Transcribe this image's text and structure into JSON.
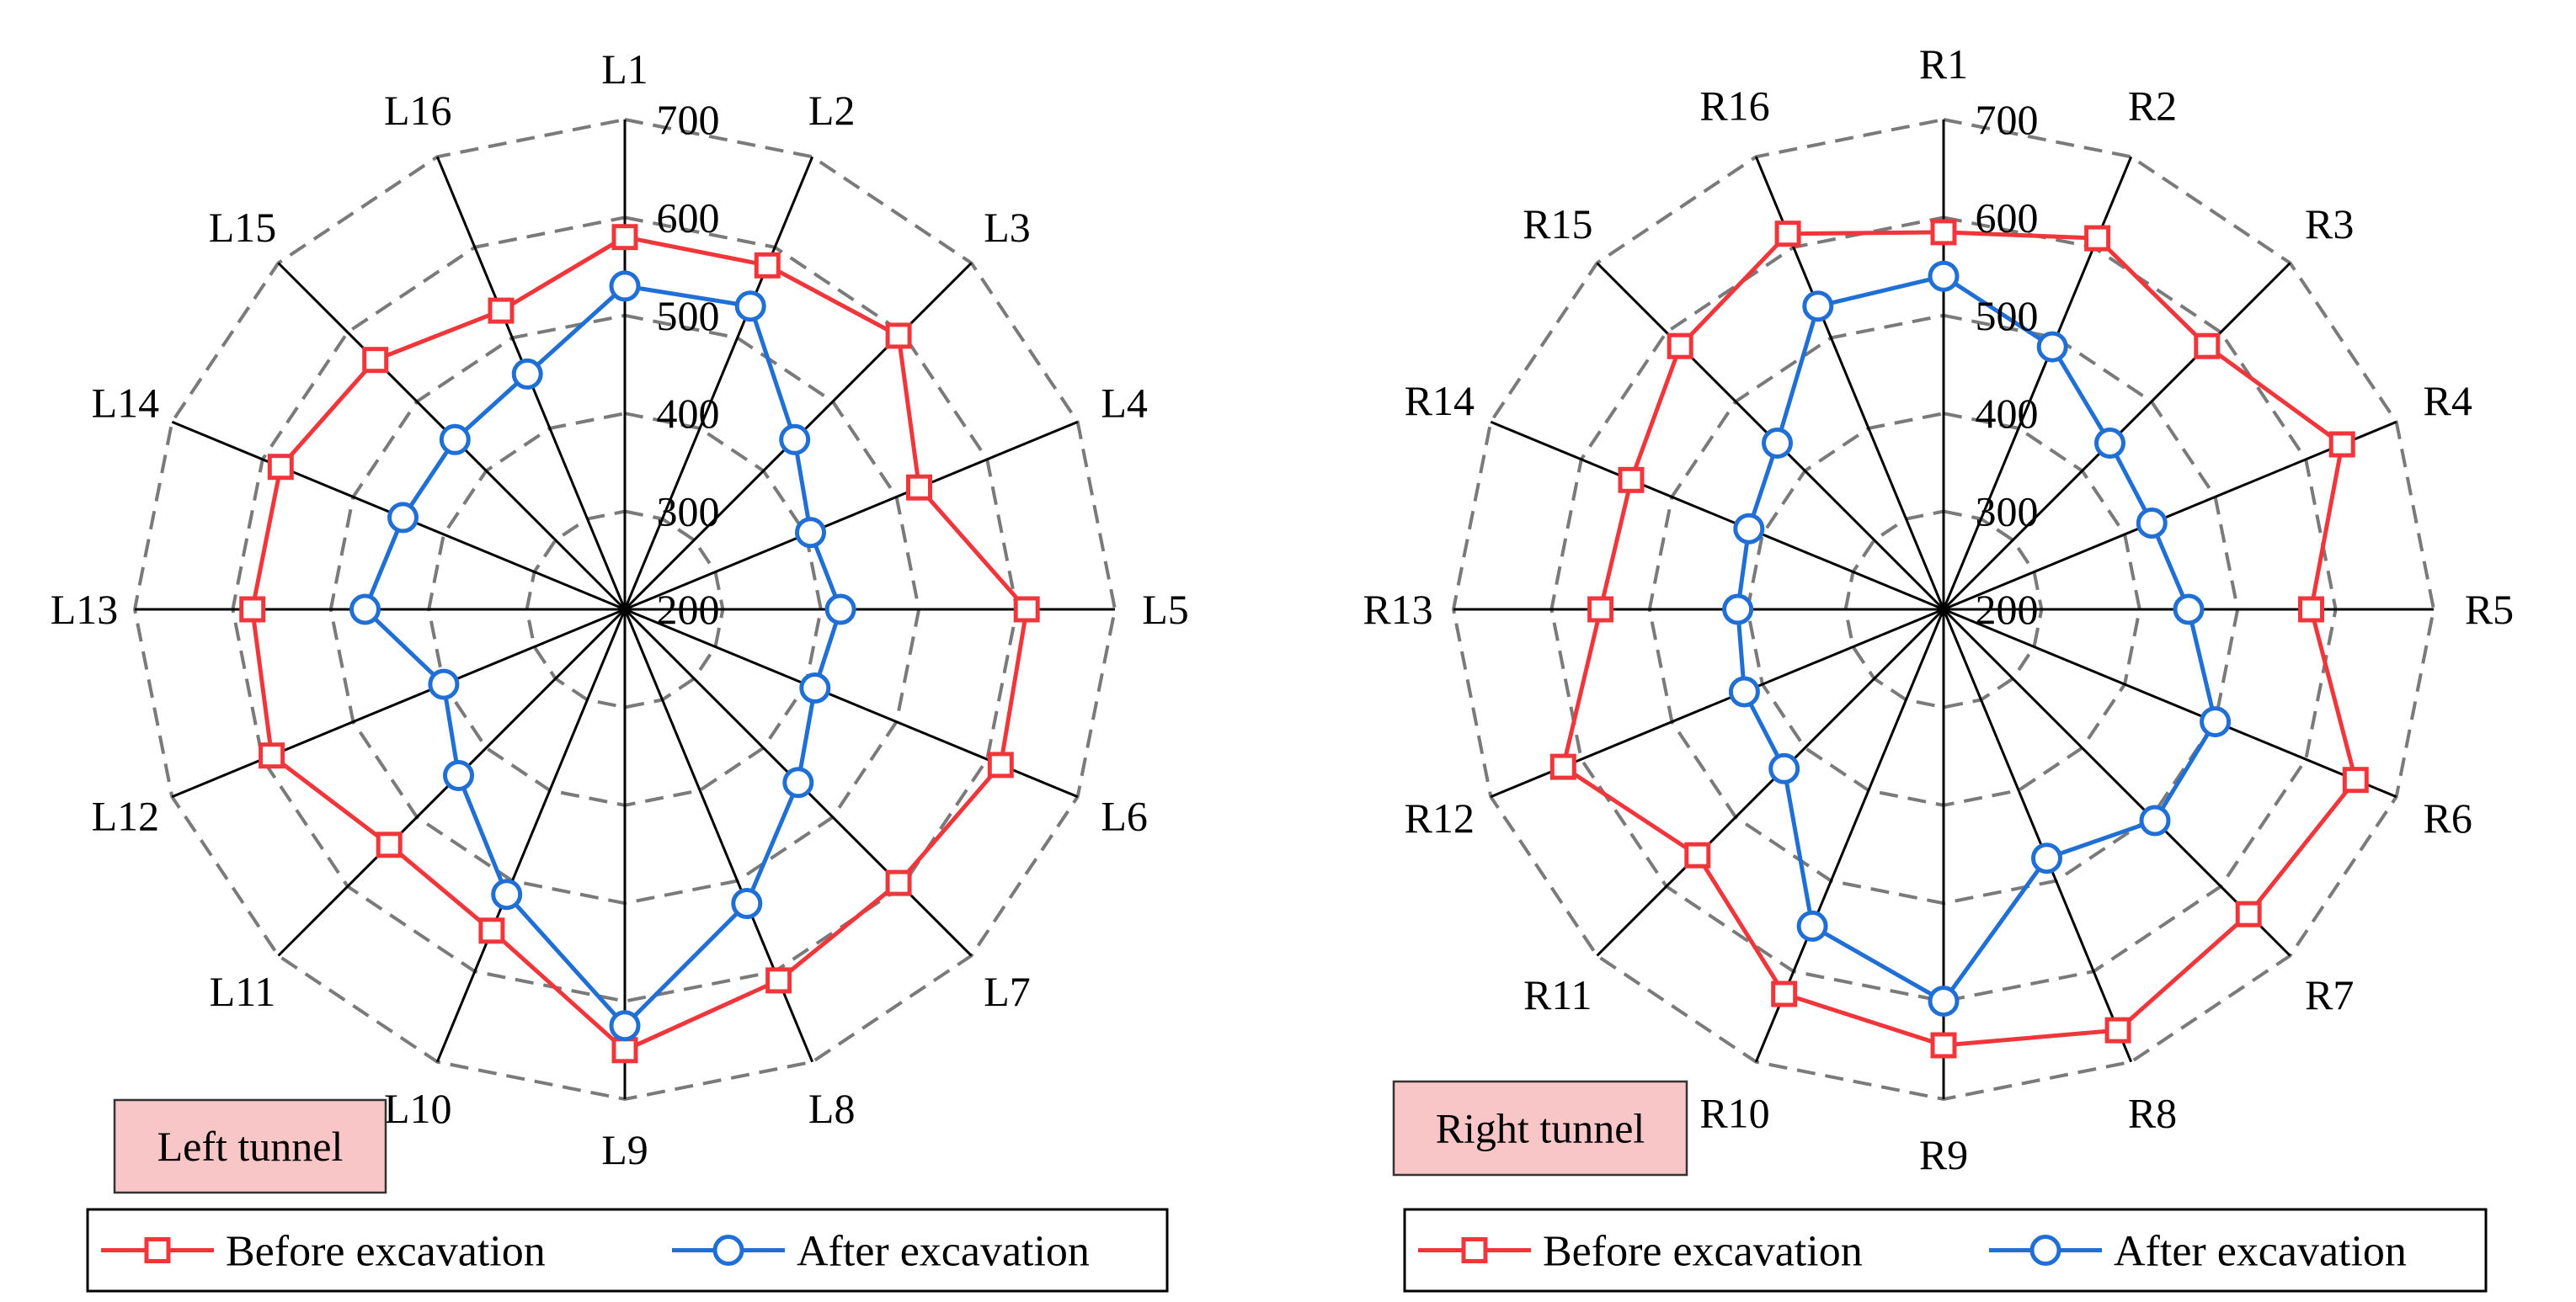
{
  "chart_data": [
    {
      "type": "radar",
      "tag": "Left tunnel",
      "categories": [
        "L1",
        "L2",
        "L3",
        "L4",
        "L5",
        "L6",
        "L7",
        "L8",
        "L9",
        "L10",
        "L11",
        "L12",
        "L13",
        "L14",
        "L15",
        "L16"
      ],
      "rlim": [
        200,
        700
      ],
      "rticks": [
        200,
        300,
        400,
        500,
        600,
        700
      ],
      "series": [
        {
          "name": "Before excavation",
          "color": "#f0363a",
          "marker": "square",
          "values": [
            580,
            580,
            595,
            525,
            610,
            615,
            595,
            610,
            650,
            555,
            540,
            590,
            580,
            580,
            560,
            530
          ]
        },
        {
          "name": "After excavation",
          "color": "#1f6fd6",
          "marker": "circle",
          "values": [
            530,
            535,
            445,
            405,
            420,
            410,
            450,
            525,
            625,
            515,
            440,
            400,
            465,
            445,
            445,
            460
          ]
        }
      ],
      "legend_position": "bottom"
    },
    {
      "type": "radar",
      "tag": "Right tunnel",
      "categories": [
        "R1",
        "R2",
        "R3",
        "R4",
        "R5",
        "R6",
        "R7",
        "R8",
        "R9",
        "R10",
        "R11",
        "R12",
        "R13",
        "R14",
        "R15",
        "R16"
      ],
      "rlim": [
        200,
        700
      ],
      "rticks": [
        200,
        300,
        400,
        500,
        600,
        700
      ],
      "series": [
        {
          "name": "Before excavation",
          "color": "#f0363a",
          "marker": "square",
          "values": [
            585,
            610,
            580,
            640,
            575,
            655,
            640,
            665,
            645,
            625,
            555,
            620,
            550,
            545,
            580,
            615
          ]
        },
        {
          "name": "After excavation",
          "color": "#1f6fd6",
          "marker": "circle",
          "values": [
            540,
            490,
            440,
            430,
            450,
            500,
            505,
            475,
            600,
            550,
            430,
            420,
            410,
            415,
            440,
            535
          ]
        }
      ],
      "legend_position": "bottom"
    }
  ]
}
